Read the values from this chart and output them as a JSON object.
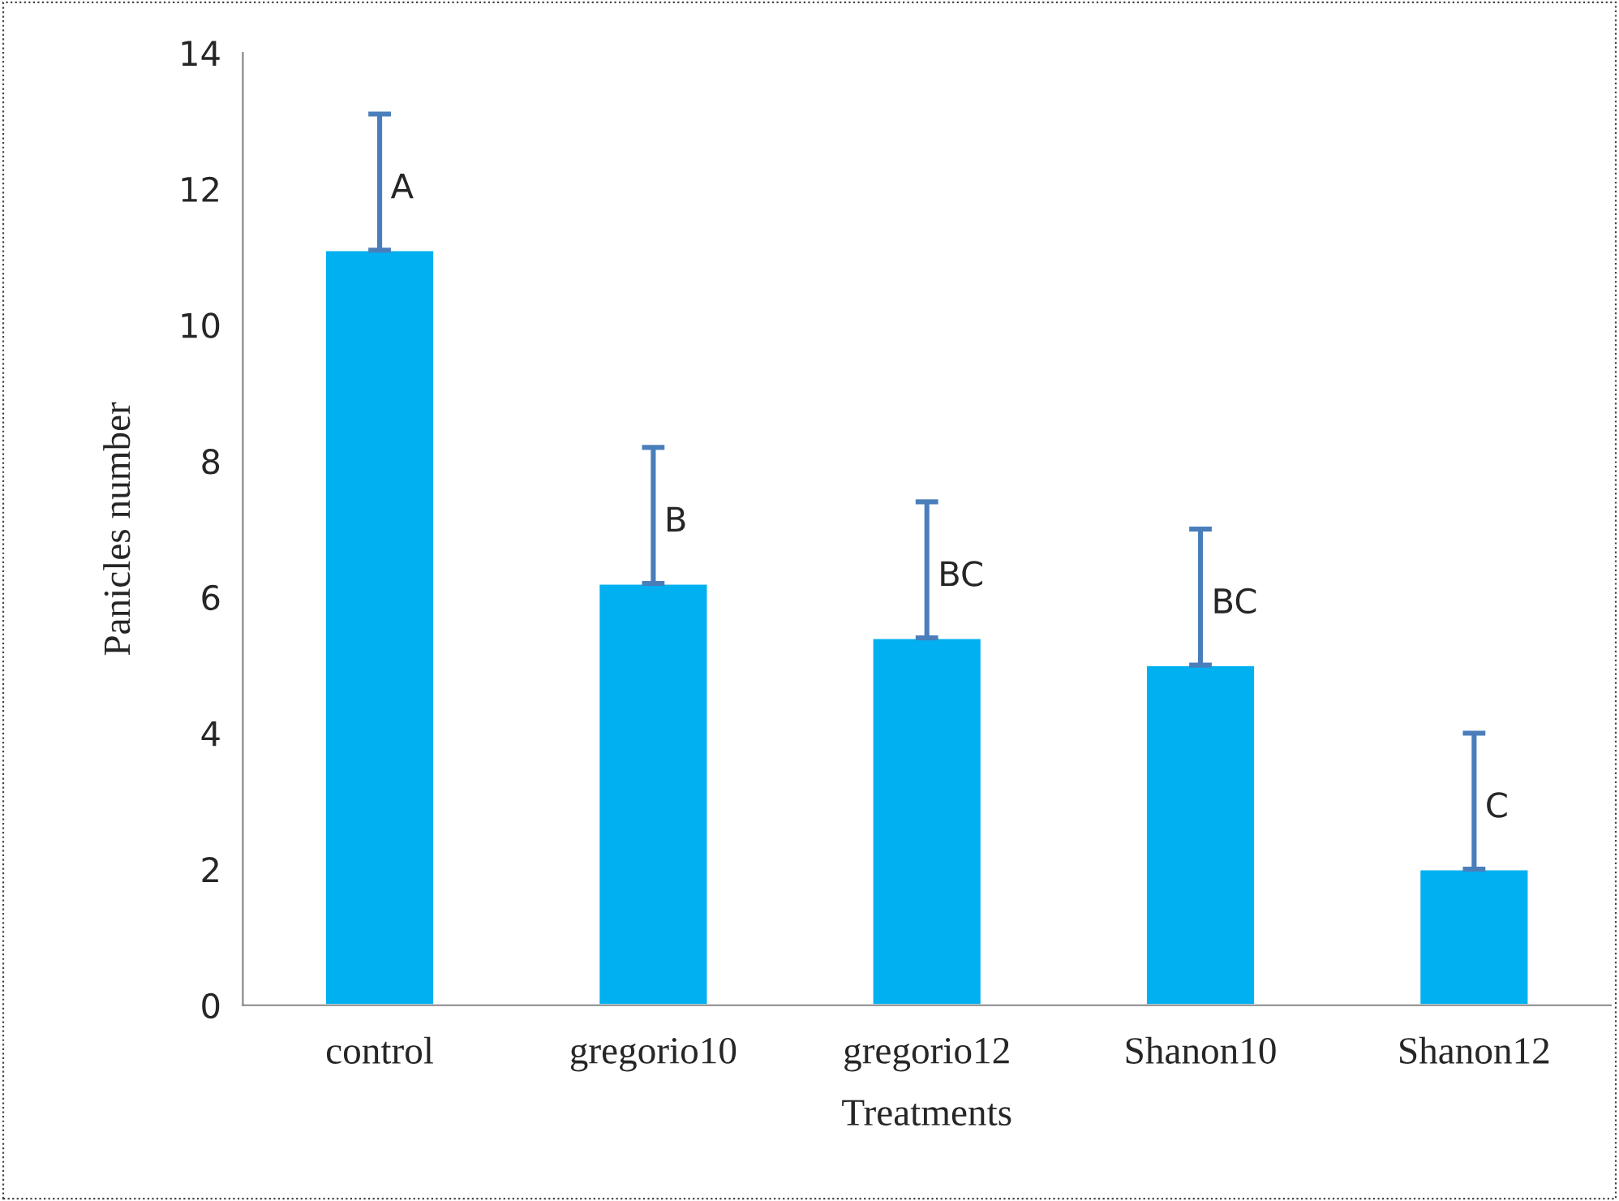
{
  "chart_data": {
    "type": "bar",
    "xlabel": "Treatments",
    "ylabel": "Panicles number",
    "categories": [
      "control",
      "gregorio10",
      "gregorio12",
      "Shanon10",
      "Shanon12"
    ],
    "values": [
      11.1,
      6.2,
      5.4,
      5.0,
      2.0
    ],
    "errors": [
      [
        11.1,
        13.1
      ],
      [
        6.2,
        8.2
      ],
      [
        5.4,
        7.4
      ],
      [
        5.0,
        7.0
      ],
      [
        2.0,
        4.0
      ]
    ],
    "color": "#00b0f0",
    "ylim": [
      0,
      14
    ],
    "yticks": [
      0,
      2,
      4,
      6,
      8,
      10,
      12,
      14
    ],
    "grid": false,
    "legend": false,
    "annotations": [
      "A",
      "B",
      "BC",
      "BC",
      "C"
    ]
  }
}
